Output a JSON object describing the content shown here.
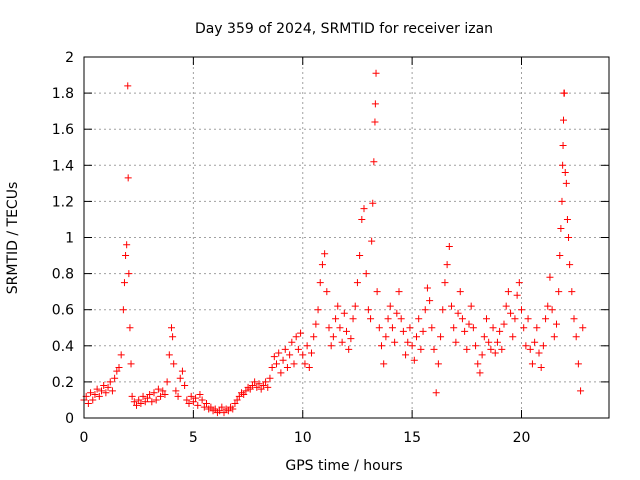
{
  "chart_data": {
    "type": "scatter",
    "title": "Day 359 of 2024, SRMTID for receiver izan",
    "xlabel": "GPS time / hours",
    "ylabel": "SRMTID / TECUs",
    "xlim": [
      0,
      24
    ],
    "ylim": [
      0,
      2
    ],
    "xticks": [
      0,
      5,
      10,
      15,
      20
    ],
    "xtick_labels": [
      "0",
      "5",
      "10",
      "15",
      "20"
    ],
    "yticks": [
      0,
      0.2,
      0.4,
      0.6,
      0.8,
      1,
      1.2,
      1.4,
      1.6,
      1.8,
      2
    ],
    "ytick_labels": [
      "0",
      "0.2",
      "0.4",
      "0.6",
      "0.8",
      "1",
      "1.2",
      "1.4",
      "1.6",
      "1.8",
      "2"
    ],
    "grid": true,
    "marker": "+",
    "color": "#ff0000",
    "series": [
      {
        "name": "SRMTID",
        "points": [
          [
            0.0,
            0.1
          ],
          [
            0.1,
            0.12
          ],
          [
            0.2,
            0.08
          ],
          [
            0.3,
            0.14
          ],
          [
            0.4,
            0.1
          ],
          [
            0.5,
            0.13
          ],
          [
            0.6,
            0.16
          ],
          [
            0.7,
            0.12
          ],
          [
            0.8,
            0.15
          ],
          [
            0.9,
            0.18
          ],
          [
            1.0,
            0.14
          ],
          [
            1.1,
            0.17
          ],
          [
            1.2,
            0.2
          ],
          [
            1.3,
            0.15
          ],
          [
            1.4,
            0.22
          ],
          [
            1.5,
            0.26
          ],
          [
            1.6,
            0.28
          ],
          [
            1.7,
            0.35
          ],
          [
            1.8,
            0.6
          ],
          [
            1.85,
            0.75
          ],
          [
            1.9,
            0.9
          ],
          [
            1.95,
            0.96
          ],
          [
            2.0,
            1.84
          ],
          [
            2.02,
            1.33
          ],
          [
            2.05,
            0.8
          ],
          [
            2.1,
            0.5
          ],
          [
            2.15,
            0.3
          ],
          [
            2.2,
            0.12
          ],
          [
            2.3,
            0.09
          ],
          [
            2.4,
            0.07
          ],
          [
            2.5,
            0.1
          ],
          [
            2.6,
            0.08
          ],
          [
            2.7,
            0.12
          ],
          [
            2.8,
            0.09
          ],
          [
            2.9,
            0.11
          ],
          [
            3.0,
            0.13
          ],
          [
            3.1,
            0.09
          ],
          [
            3.2,
            0.14
          ],
          [
            3.3,
            0.1
          ],
          [
            3.4,
            0.16
          ],
          [
            3.5,
            0.12
          ],
          [
            3.6,
            0.15
          ],
          [
            3.7,
            0.13
          ],
          [
            3.8,
            0.2
          ],
          [
            3.9,
            0.35
          ],
          [
            4.0,
            0.5
          ],
          [
            4.05,
            0.45
          ],
          [
            4.1,
            0.3
          ],
          [
            4.2,
            0.15
          ],
          [
            4.3,
            0.12
          ],
          [
            4.4,
            0.22
          ],
          [
            4.5,
            0.26
          ],
          [
            4.6,
            0.18
          ],
          [
            4.7,
            0.1
          ],
          [
            4.8,
            0.08
          ],
          [
            4.9,
            0.12
          ],
          [
            5.0,
            0.09
          ],
          [
            5.1,
            0.11
          ],
          [
            5.2,
            0.07
          ],
          [
            5.3,
            0.13
          ],
          [
            5.4,
            0.1
          ],
          [
            5.5,
            0.06
          ],
          [
            5.6,
            0.08
          ],
          [
            5.7,
            0.05
          ],
          [
            5.8,
            0.06
          ],
          [
            5.9,
            0.04
          ],
          [
            6.0,
            0.05
          ],
          [
            6.1,
            0.03
          ],
          [
            6.2,
            0.04
          ],
          [
            6.3,
            0.06
          ],
          [
            6.4,
            0.03
          ],
          [
            6.5,
            0.05
          ],
          [
            6.6,
            0.04
          ],
          [
            6.7,
            0.06
          ],
          [
            6.8,
            0.05
          ],
          [
            6.9,
            0.08
          ],
          [
            7.0,
            0.1
          ],
          [
            7.1,
            0.12
          ],
          [
            7.2,
            0.14
          ],
          [
            7.3,
            0.13
          ],
          [
            7.4,
            0.15
          ],
          [
            7.5,
            0.17
          ],
          [
            7.6,
            0.16
          ],
          [
            7.7,
            0.18
          ],
          [
            7.8,
            0.2
          ],
          [
            7.9,
            0.17
          ],
          [
            8.0,
            0.19
          ],
          [
            8.1,
            0.16
          ],
          [
            8.2,
            0.18
          ],
          [
            8.3,
            0.2
          ],
          [
            8.4,
            0.17
          ],
          [
            8.5,
            0.22
          ],
          [
            8.6,
            0.28
          ],
          [
            8.7,
            0.34
          ],
          [
            8.8,
            0.3
          ],
          [
            8.9,
            0.36
          ],
          [
            9.0,
            0.25
          ],
          [
            9.1,
            0.32
          ],
          [
            9.2,
            0.38
          ],
          [
            9.3,
            0.28
          ],
          [
            9.4,
            0.35
          ],
          [
            9.5,
            0.42
          ],
          [
            9.6,
            0.3
          ],
          [
            9.7,
            0.45
          ],
          [
            9.8,
            0.38
          ],
          [
            9.9,
            0.47
          ],
          [
            10.0,
            0.35
          ],
          [
            10.1,
            0.3
          ],
          [
            10.2,
            0.4
          ],
          [
            10.3,
            0.28
          ],
          [
            10.4,
            0.36
          ],
          [
            10.5,
            0.45
          ],
          [
            10.6,
            0.52
          ],
          [
            10.7,
            0.6
          ],
          [
            10.8,
            0.75
          ],
          [
            10.9,
            0.85
          ],
          [
            11.0,
            0.91
          ],
          [
            11.1,
            0.7
          ],
          [
            11.2,
            0.5
          ],
          [
            11.3,
            0.4
          ],
          [
            11.4,
            0.45
          ],
          [
            11.5,
            0.55
          ],
          [
            11.6,
            0.62
          ],
          [
            11.7,
            0.5
          ],
          [
            11.8,
            0.42
          ],
          [
            11.9,
            0.58
          ],
          [
            12.0,
            0.48
          ],
          [
            12.1,
            0.38
          ],
          [
            12.2,
            0.44
          ],
          [
            12.3,
            0.55
          ],
          [
            12.4,
            0.62
          ],
          [
            12.5,
            0.75
          ],
          [
            12.6,
            0.9
          ],
          [
            12.7,
            1.1
          ],
          [
            12.8,
            1.16
          ],
          [
            12.9,
            0.8
          ],
          [
            13.0,
            0.6
          ],
          [
            13.1,
            0.55
          ],
          [
            13.15,
            0.98
          ],
          [
            13.2,
            1.19
          ],
          [
            13.25,
            1.42
          ],
          [
            13.3,
            1.64
          ],
          [
            13.32,
            1.74
          ],
          [
            13.35,
            1.91
          ],
          [
            13.4,
            0.7
          ],
          [
            13.5,
            0.5
          ],
          [
            13.6,
            0.4
          ],
          [
            13.7,
            0.3
          ],
          [
            13.8,
            0.45
          ],
          [
            13.9,
            0.55
          ],
          [
            14.0,
            0.62
          ],
          [
            14.1,
            0.5
          ],
          [
            14.2,
            0.42
          ],
          [
            14.3,
            0.58
          ],
          [
            14.4,
            0.7
          ],
          [
            14.5,
            0.55
          ],
          [
            14.6,
            0.48
          ],
          [
            14.7,
            0.35
          ],
          [
            14.8,
            0.42
          ],
          [
            14.9,
            0.5
          ],
          [
            15.0,
            0.4
          ],
          [
            15.1,
            0.32
          ],
          [
            15.2,
            0.45
          ],
          [
            15.3,
            0.55
          ],
          [
            15.4,
            0.38
          ],
          [
            15.5,
            0.48
          ],
          [
            15.6,
            0.6
          ],
          [
            15.7,
            0.72
          ],
          [
            15.8,
            0.65
          ],
          [
            15.9,
            0.5
          ],
          [
            16.0,
            0.38
          ],
          [
            16.1,
            0.14
          ],
          [
            16.2,
            0.3
          ],
          [
            16.3,
            0.45
          ],
          [
            16.4,
            0.6
          ],
          [
            16.5,
            0.75
          ],
          [
            16.6,
            0.85
          ],
          [
            16.7,
            0.95
          ],
          [
            16.8,
            0.62
          ],
          [
            16.9,
            0.5
          ],
          [
            17.0,
            0.42
          ],
          [
            17.1,
            0.58
          ],
          [
            17.2,
            0.7
          ],
          [
            17.3,
            0.55
          ],
          [
            17.4,
            0.48
          ],
          [
            17.5,
            0.38
          ],
          [
            17.6,
            0.52
          ],
          [
            17.7,
            0.62
          ],
          [
            17.8,
            0.5
          ],
          [
            17.9,
            0.4
          ],
          [
            18.0,
            0.3
          ],
          [
            18.1,
            0.25
          ],
          [
            18.2,
            0.35
          ],
          [
            18.3,
            0.45
          ],
          [
            18.4,
            0.55
          ],
          [
            18.5,
            0.42
          ],
          [
            18.6,
            0.38
          ],
          [
            18.7,
            0.5
          ],
          [
            18.8,
            0.36
          ],
          [
            18.9,
            0.42
          ],
          [
            19.0,
            0.48
          ],
          [
            19.1,
            0.38
          ],
          [
            19.2,
            0.52
          ],
          [
            19.3,
            0.62
          ],
          [
            19.4,
            0.7
          ],
          [
            19.5,
            0.58
          ],
          [
            19.6,
            0.45
          ],
          [
            19.7,
            0.55
          ],
          [
            19.8,
            0.68
          ],
          [
            19.9,
            0.75
          ],
          [
            20.0,
            0.6
          ],
          [
            20.1,
            0.5
          ],
          [
            20.2,
            0.4
          ],
          [
            20.3,
            0.55
          ],
          [
            20.4,
            0.38
          ],
          [
            20.5,
            0.3
          ],
          [
            20.6,
            0.42
          ],
          [
            20.7,
            0.5
          ],
          [
            20.8,
            0.36
          ],
          [
            20.9,
            0.28
          ],
          [
            21.0,
            0.4
          ],
          [
            21.1,
            0.55
          ],
          [
            21.2,
            0.62
          ],
          [
            21.3,
            0.78
          ],
          [
            21.4,
            0.6
          ],
          [
            21.5,
            0.45
          ],
          [
            21.6,
            0.52
          ],
          [
            21.7,
            0.7
          ],
          [
            21.75,
            0.9
          ],
          [
            21.8,
            1.05
          ],
          [
            21.85,
            1.2
          ],
          [
            21.88,
            1.4
          ],
          [
            21.9,
            1.51
          ],
          [
            21.92,
            1.65
          ],
          [
            21.94,
            1.8
          ],
          [
            21.96,
            1.8
          ],
          [
            22.0,
            1.36
          ],
          [
            22.05,
            1.3
          ],
          [
            22.1,
            1.1
          ],
          [
            22.15,
            1.0
          ],
          [
            22.2,
            0.85
          ],
          [
            22.3,
            0.7
          ],
          [
            22.4,
            0.55
          ],
          [
            22.5,
            0.45
          ],
          [
            22.6,
            0.3
          ],
          [
            22.7,
            0.15
          ],
          [
            22.8,
            0.5
          ]
        ]
      }
    ]
  }
}
